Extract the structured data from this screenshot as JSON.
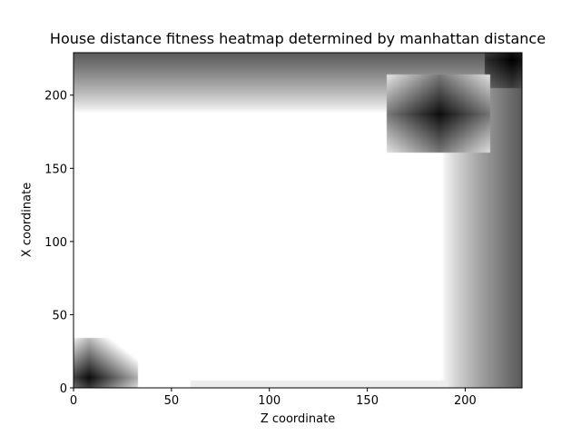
{
  "chart_data": {
    "type": "heatmap",
    "title": "House distance fitness heatmap determined by manhattan distance",
    "xlabel": "Z coordinate",
    "ylabel": "X coordinate",
    "xlim": [
      0,
      229
    ],
    "ylim": [
      0,
      229
    ],
    "xticks": [
      0,
      50,
      100,
      150,
      200
    ],
    "yticks": [
      0,
      50,
      100,
      150,
      200
    ],
    "colormap": "gray",
    "grid": false,
    "colors": {
      "low": "#000000",
      "high": "#ffffff",
      "frame": "#000000"
    },
    "regions": [
      {
        "name": "",
        "z_range": [
          0,
          33
        ],
        "x_range": [
          0,
          34
        ],
        "center": [
          8,
          7
        ],
        "peak": "dark"
      },
      {
        "name": "",
        "z_range": [
          160,
          213
        ],
        "x_range": [
          161,
          214
        ],
        "center": [
          187,
          187
        ],
        "peak": "dark"
      }
    ],
    "bands": [
      {
        "axis": "z",
        "fade_from": 188,
        "fade_to": 229
      },
      {
        "axis": "x",
        "fade_from": 188,
        "fade_to": 229
      }
    ]
  }
}
